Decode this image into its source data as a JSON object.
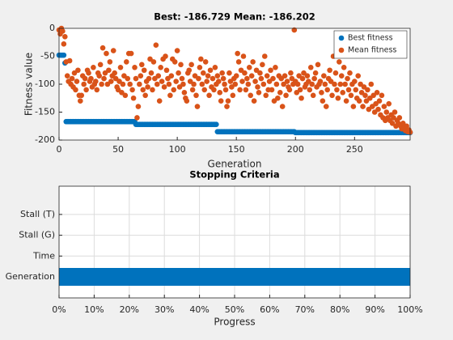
{
  "chart_data": [
    {
      "type": "scatter",
      "title": "Best: -186.729 Mean: -186.202",
      "xlabel": "Generation",
      "ylabel": "Fitness value",
      "legend": "northeast",
      "xlim": [
        0,
        297
      ],
      "ylim": [
        -200,
        0
      ],
      "xticks": [
        0,
        50,
        100,
        150,
        200,
        250
      ],
      "yticks": [
        -200,
        -150,
        -100,
        -50,
        0
      ],
      "grid": false,
      "x": [
        0,
        1,
        2,
        3,
        4,
        5,
        6,
        7,
        8,
        9,
        10,
        11,
        12,
        13,
        14,
        15,
        16,
        17,
        18,
        19,
        20,
        21,
        22,
        23,
        24,
        25,
        26,
        27,
        28,
        29,
        30,
        31,
        32,
        33,
        34,
        35,
        36,
        37,
        38,
        39,
        40,
        41,
        42,
        43,
        44,
        45,
        46,
        47,
        48,
        49,
        50,
        51,
        52,
        53,
        54,
        55,
        56,
        57,
        58,
        59,
        60,
        61,
        62,
        63,
        64,
        65,
        66,
        67,
        68,
        69,
        70,
        71,
        72,
        73,
        74,
        75,
        76,
        77,
        78,
        79,
        80,
        81,
        82,
        83,
        84,
        85,
        86,
        87,
        88,
        89,
        90,
        91,
        92,
        93,
        94,
        95,
        96,
        97,
        98,
        99,
        100,
        101,
        102,
        103,
        104,
        105,
        106,
        107,
        108,
        109,
        110,
        111,
        112,
        113,
        114,
        115,
        116,
        117,
        118,
        119,
        120,
        121,
        122,
        123,
        124,
        125,
        126,
        127,
        128,
        129,
        130,
        131,
        132,
        133,
        134,
        135,
        136,
        137,
        138,
        139,
        140,
        141,
        142,
        143,
        144,
        145,
        146,
        147,
        148,
        149,
        150,
        151,
        152,
        153,
        154,
        155,
        156,
        157,
        158,
        159,
        160,
        161,
        162,
        163,
        164,
        165,
        166,
        167,
        168,
        169,
        170,
        171,
        172,
        173,
        174,
        175,
        176,
        177,
        178,
        179,
        180,
        181,
        182,
        183,
        184,
        185,
        186,
        187,
        188,
        189,
        190,
        191,
        192,
        193,
        194,
        195,
        196,
        197,
        198,
        199,
        200,
        201,
        202,
        203,
        204,
        205,
        206,
        207,
        208,
        209,
        210,
        211,
        212,
        213,
        214,
        215,
        216,
        217,
        218,
        219,
        220,
        221,
        222,
        223,
        224,
        225,
        226,
        227,
        228,
        229,
        230,
        231,
        232,
        233,
        234,
        235,
        236,
        237,
        238,
        239,
        240,
        241,
        242,
        243,
        244,
        245,
        246,
        247,
        248,
        249,
        250,
        251,
        252,
        253,
        254,
        255,
        256,
        257,
        258,
        259,
        260,
        261,
        262,
        263,
        264,
        265,
        266,
        267,
        268,
        269,
        270,
        271,
        272,
        273,
        274,
        275,
        276,
        277,
        278,
        279,
        280,
        281,
        282,
        283,
        284,
        285,
        286,
        287,
        288,
        289,
        290,
        291,
        292,
        293,
        294,
        295,
        296,
        297
      ],
      "series": [
        {
          "name": "Best fitness",
          "color": "#0072bd",
          "values": [
            -48,
            -48,
            -48,
            -48,
            -48,
            -62,
            -167,
            -167,
            -167,
            -167,
            -167,
            -167,
            -167,
            -167,
            -167,
            -167,
            -167,
            -167,
            -167,
            -167,
            -167,
            -167,
            -167,
            -167,
            -167,
            -167,
            -167,
            -167,
            -167,
            -167,
            -167,
            -167,
            -167,
            -167,
            -167,
            -167,
            -167,
            -167,
            -167,
            -167,
            -167,
            -167,
            -167,
            -167,
            -167,
            -167,
            -167,
            -167,
            -167,
            -167,
            -167,
            -167,
            -167,
            -167,
            -167,
            -167,
            -167,
            -167,
            -167,
            -167,
            -167,
            -167,
            -167,
            -167,
            -167,
            -172,
            -172,
            -172,
            -172,
            -172,
            -172,
            -172,
            -172,
            -172,
            -172,
            -172,
            -172,
            -172,
            -172,
            -172,
            -172,
            -172,
            -172,
            -172,
            -172,
            -172,
            -172,
            -172,
            -172,
            -172,
            -172,
            -172,
            -172,
            -172,
            -172,
            -172,
            -172,
            -172,
            -172,
            -172,
            -172,
            -172,
            -172,
            -172,
            -172,
            -172,
            -172,
            -172,
            -172,
            -172,
            -172,
            -172,
            -172,
            -172,
            -172,
            -172,
            -172,
            -172,
            -172,
            -172,
            -172,
            -172,
            -172,
            -172,
            -172,
            -172,
            -172,
            -172,
            -172,
            -172,
            -172,
            -172,
            -172,
            -172,
            -185,
            -185,
            -185,
            -185,
            -185,
            -185,
            -185,
            -185,
            -185,
            -185,
            -185,
            -185,
            -185,
            -185,
            -185,
            -185,
            -185,
            -185,
            -185,
            -185,
            -185,
            -185,
            -185,
            -185,
            -185,
            -185,
            -185,
            -185,
            -185,
            -185,
            -185,
            -185,
            -185,
            -185,
            -185,
            -185,
            -185,
            -185,
            -185,
            -185,
            -185,
            -185,
            -185,
            -185,
            -185,
            -185,
            -185,
            -185,
            -185,
            -185,
            -185,
            -185,
            -185,
            -185,
            -185,
            -185,
            -185,
            -185,
            -185,
            -185,
            -185,
            -185,
            -185,
            -185,
            -185,
            -185,
            -186.7,
            -186.7,
            -186.7,
            -186.7,
            -186.7,
            -186.7,
            -186.7,
            -186.7,
            -186.7,
            -186.7,
            -186.7,
            -186.7,
            -186.7,
            -186.7,
            -186.7,
            -186.7,
            -186.7,
            -186.7,
            -186.7,
            -186.7,
            -186.7,
            -186.7,
            -186.7,
            -186.7,
            -186.7,
            -186.7,
            -186.7,
            -186.7,
            -186.7,
            -186.7,
            -186.7,
            -186.7,
            -186.7,
            -186.7,
            -186.7,
            -186.7,
            -186.7,
            -186.7,
            -186.7,
            -186.7,
            -186.7,
            -186.7,
            -186.7,
            -186.7,
            -186.7,
            -186.7,
            -186.7,
            -186.7,
            -186.7,
            -186.7,
            -186.7,
            -186.7,
            -186.7,
            -186.7,
            -186.7,
            -186.7,
            -186.7,
            -186.7,
            -186.7,
            -186.7,
            -186.7,
            -186.7,
            -186.7,
            -186.7,
            -186.7,
            -186.7,
            -186.7,
            -186.7,
            -186.7,
            -186.7,
            -186.7,
            -186.7,
            -186.7,
            -186.7,
            -186.7,
            -186.7,
            -186.7,
            -186.7,
            -186.7,
            -186.7,
            -186.7,
            -186.7,
            -186.7,
            -186.7,
            -186.7,
            -186.7,
            -186.7,
            -186.7,
            -186.7,
            -186.7,
            -186.7,
            -186.7,
            -186.7,
            -186.7,
            -186.7,
            -186.7,
            -186.7,
            -186.7
          ]
        },
        {
          "name": "Mean fitness",
          "color": "#d95319",
          "values": [
            -3,
            -10,
            0,
            -5,
            -28,
            -15,
            -60,
            -85,
            -95,
            -58,
            -100,
            -90,
            -105,
            -80,
            -110,
            -95,
            -75,
            -120,
            -130,
            -120,
            -85,
            -100,
            -90,
            -110,
            -75,
            -80,
            -95,
            -90,
            -105,
            -70,
            -100,
            -95,
            -110,
            -80,
            -85,
            -65,
            -100,
            -35,
            -90,
            -80,
            -45,
            -100,
            -75,
            -60,
            -95,
            -85,
            -40,
            -80,
            -90,
            -105,
            -110,
            -95,
            -70,
            -115,
            -100,
            -85,
            -120,
            -60,
            -90,
            -45,
            -100,
            -45,
            -110,
            -125,
            -70,
            -90,
            -160,
            -140,
            -100,
            -85,
            -65,
            -110,
            -75,
            -120,
            -95,
            -105,
            -90,
            -55,
            -80,
            -110,
            -60,
            -90,
            -30,
            -100,
            -85,
            -130,
            -70,
            -95,
            -55,
            -105,
            -50,
            -75,
            -90,
            -100,
            -120,
            -85,
            -55,
            -110,
            -60,
            -95,
            -40,
            -80,
            -105,
            -65,
            -90,
            -100,
            -115,
            -125,
            -130,
            -80,
            -75,
            -95,
            -65,
            -110,
            -100,
            -85,
            -120,
            -140,
            -90,
            -70,
            -55,
            -100,
            -80,
            -110,
            -60,
            -95,
            -85,
            -120,
            -75,
            -105,
            -90,
            -110,
            -70,
            -100,
            -85,
            -95,
            -115,
            -130,
            -80,
            -90,
            -100,
            -110,
            -140,
            -130,
            -80,
            -95,
            -105,
            -120,
            -90,
            -100,
            -85,
            -45,
            -60,
            -110,
            -75,
            -95,
            -50,
            -80,
            -110,
            -90,
            -100,
            -70,
            -120,
            -85,
            -60,
            -130,
            -95,
            -75,
            -105,
            -115,
            -80,
            -90,
            -65,
            -100,
            -50,
            -120,
            -85,
            -110,
            -95,
            -75,
            -110,
            -90,
            -130,
            -70,
            -100,
            -125,
            -85,
            -115,
            -90,
            -140,
            -100,
            -85,
            -120,
            -95,
            -105,
            -110,
            -80,
            -90,
            -100,
            -3,
            -95,
            -115,
            -100,
            -85,
            -110,
            -125,
            -90,
            -80,
            -105,
            -100,
            -85,
            -95,
            -110,
            -70,
            -100,
            -120,
            -90,
            -80,
            -105,
            -65,
            -100,
            -95,
            -115,
            -130,
            -85,
            -100,
            -140,
            -110,
            -90,
            -75,
            -95,
            -120,
            -50,
            -100,
            -80,
            -110,
            -125,
            -60,
            -100,
            -85,
            -115,
            -70,
            -100,
            -130,
            -90,
            -110,
            -80,
            -120,
            -100,
            -140,
            -95,
            -110,
            -125,
            -85,
            -130,
            -100,
            -115,
            -140,
            -105,
            -120,
            -130,
            -110,
            -145,
            -125,
            -100,
            -140,
            -120,
            -150,
            -135,
            -115,
            -145,
            -130,
            -155,
            -120,
            -160,
            -140,
            -165,
            -150,
            -160,
            -135,
            -165,
            -155,
            -170,
            -160,
            -150,
            -175,
            -165,
            -170,
            -160,
            -175,
            -180,
            -170,
            -178,
            -183,
            -175,
            -185,
            -182,
            -186
          ]
        }
      ]
    },
    {
      "type": "barh",
      "title": "Stopping Criteria",
      "xlabel": "Progress",
      "grid": true,
      "color": "#0072bd",
      "categories": [
        "Generation",
        "Time",
        "Stall (G)",
        "Stall (T)"
      ],
      "values": [
        100,
        0,
        0,
        0
      ],
      "xlim": [
        0,
        100
      ],
      "xticks": [
        {
          "value": 0,
          "label": "0%"
        },
        {
          "value": 10,
          "label": "10%"
        },
        {
          "value": 20,
          "label": "20%"
        },
        {
          "value": 30,
          "label": "30%"
        },
        {
          "value": 40,
          "label": "40%"
        },
        {
          "value": 50,
          "label": "50%"
        },
        {
          "value": 60,
          "label": "60%"
        },
        {
          "value": 70,
          "label": "70%"
        },
        {
          "value": 80,
          "label": "80%"
        },
        {
          "value": 90,
          "label": "90%"
        },
        {
          "value": 100,
          "label": "100%"
        }
      ]
    }
  ]
}
